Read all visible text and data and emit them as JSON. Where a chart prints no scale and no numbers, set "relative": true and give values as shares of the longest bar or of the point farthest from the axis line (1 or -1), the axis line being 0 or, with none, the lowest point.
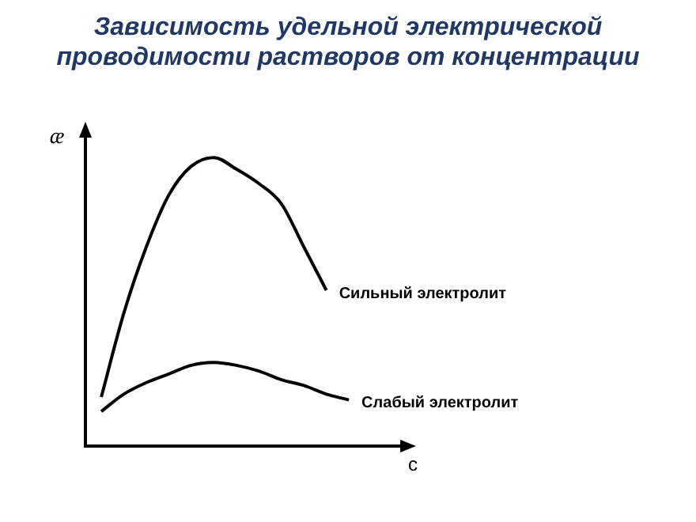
{
  "chart_data": {
    "type": "line",
    "title": "Зависимость удельной электрической проводимости растворов от концентрации",
    "xlabel": "c",
    "ylabel": "æ",
    "relative": true,
    "grid": false,
    "legend": false,
    "marker": "none",
    "categories": [
      null,
      null,
      null,
      null,
      null,
      null,
      null,
      null,
      null,
      null,
      null,
      null
    ],
    "series": [
      {
        "name": "Сильный электролит",
        "color": "#000000",
        "values": [
          0.17,
          0.46,
          0.69,
          0.87,
          0.97,
          1,
          0.96,
          0.91,
          0.84,
          0.69,
          0.54,
          null
        ]
      },
      {
        "name": "Слабый электролит",
        "color": "#000000",
        "values": [
          0.12,
          0.18,
          0.22,
          0.25,
          0.28,
          0.29,
          0.28,
          0.26,
          0.23,
          0.21,
          0.18,
          0.16
        ]
      }
    ]
  }
}
